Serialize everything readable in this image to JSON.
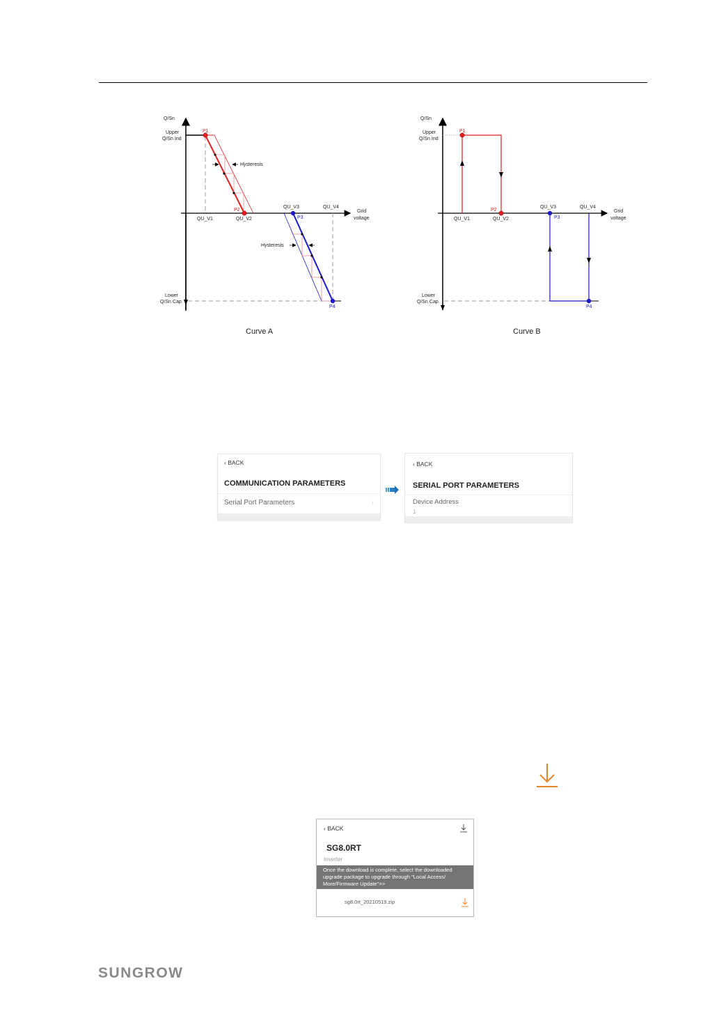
{
  "curves": {
    "colors": {
      "red": "#e02020",
      "blue": "#1a1acc",
      "axis": "#000000",
      "dash": "#999999"
    },
    "curve_a": {
      "caption": "Curve A",
      "y_axis": "Q/Sn",
      "x_axis_line1": "Grid",
      "x_axis_line2": "voltage",
      "upper_line1": "Upper",
      "upper_line2": "Q/Sn Ind",
      "lower_line1": "Lower",
      "lower_line2": "Q/Sn Cap",
      "v1": "QU_V1",
      "v2": "QU_V2",
      "v3": "QU_V3",
      "v4": "QU_V4",
      "p1": "P1",
      "p2": "P2",
      "p3": "P3",
      "p4": "P4",
      "hysteresis": "Hysteresis"
    },
    "curve_b": {
      "caption": "Curve B",
      "y_axis": "Q/Sn",
      "x_axis_line1": "Grid",
      "x_axis_line2": "voltage",
      "upper_line1": "Upper",
      "upper_line2": "Q/Sn Ind",
      "lower_line1": "Lower",
      "lower_line2": "Q/Sn Cap",
      "v1": "QU_V1",
      "v2": "QU_V2",
      "v3": "QU_V3",
      "v4": "QU_V4",
      "p1": "P1",
      "p2": "P2",
      "p3": "P3",
      "p4": "P4"
    }
  },
  "comm_screen": {
    "back": "BACK",
    "title": "COMMUNICATION PARAMETERS",
    "item": "Serial Port Parameters"
  },
  "serial_screen": {
    "back": "BACK",
    "title": "SERIAL PORT PARAMETERS",
    "field_label": "Device Address",
    "field_value": "1"
  },
  "download_icon_color": "#e8862a",
  "firmware_screen": {
    "back": "BACK",
    "title": "SG8.0RT",
    "subtitle": "Inverter",
    "notice": "Once the download is complete, select the downloaded upgrade package to upgrade through \"Local Access/ More/Firmware Update\">>",
    "file": "sg8.0rt_20210519.zip"
  },
  "logo": "SUNGROW"
}
